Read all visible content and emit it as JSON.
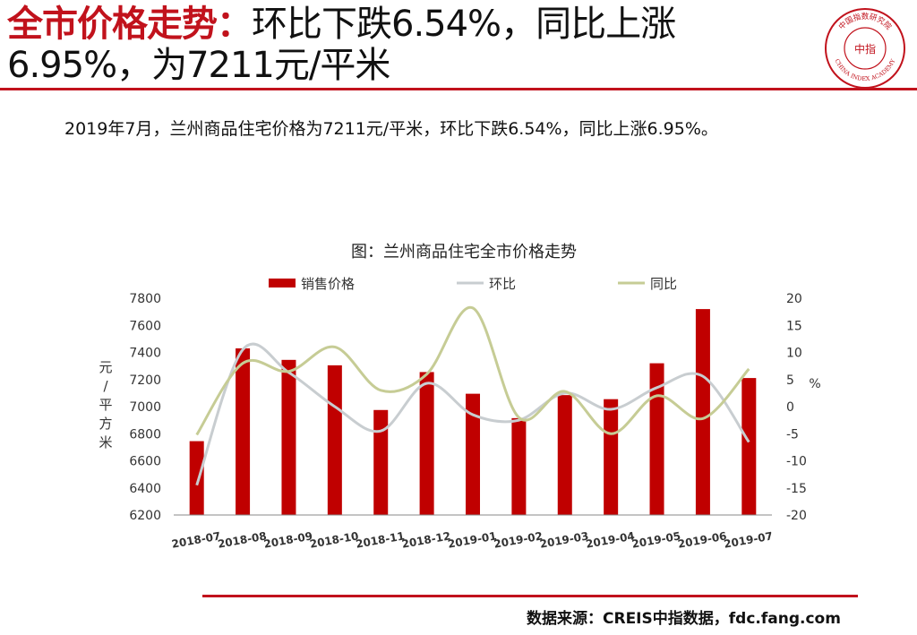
{
  "headline": {
    "highlight": "全市价格走势：",
    "rest": "环比下跌6.54%，同比上涨6.95%，为7211元/平米"
  },
  "logo": {
    "top_text": "中国指数研究院",
    "center_text": "中指",
    "bottom_text": "CHINA INDEX ACADEMY"
  },
  "summary": "2019年7月，兰州商品住宅价格为7211元/平米，环比下跌6.54%，同比上涨6.95%。",
  "source": "数据来源：CREIS中指数据，fdc.fang.com",
  "colors": {
    "accent_red": "#c1121c",
    "bar": "#c00000",
    "mom_line": "#c8cdd0",
    "yoy_line": "#c6cc95"
  },
  "chart_data": {
    "type": "bar",
    "title": "图：兰州商品住宅全市价格走势",
    "categories": [
      "2018-07",
      "2018-08",
      "2018-09",
      "2018-10",
      "2018-11",
      "2018-12",
      "2019-01",
      "2019-02",
      "2019-03",
      "2019-04",
      "2019-05",
      "2019-06",
      "2019-07"
    ],
    "series": [
      {
        "name": "销售价格",
        "kind": "bar",
        "axis": "left",
        "values": [
          6745,
          7430,
          7345,
          7305,
          6975,
          7255,
          7095,
          6915,
          7085,
          7055,
          7320,
          7720,
          7211
        ]
      },
      {
        "name": "环比",
        "kind": "line",
        "axis": "right",
        "values": [
          -14.5,
          10.5,
          6.3,
          0.0,
          -4.5,
          4.3,
          -1.5,
          -2.5,
          2.5,
          -0.5,
          3.5,
          5.6,
          -6.54
        ]
      },
      {
        "name": "同比",
        "kind": "line",
        "axis": "right",
        "values": [
          -5.2,
          8.0,
          6.5,
          11.0,
          3.0,
          6.0,
          18.2,
          -2.0,
          2.8,
          -5.0,
          2.0,
          -2.2,
          6.95
        ]
      }
    ],
    "ylabel": "元/平方米",
    "ylim": [
      6200,
      7800
    ],
    "yticks": [
      6200,
      6400,
      6600,
      6800,
      7000,
      7200,
      7400,
      7600,
      7800
    ],
    "y2label": "%",
    "y2lim": [
      -20,
      20
    ],
    "y2ticks": [
      -20,
      -15,
      -10,
      -5,
      0,
      5,
      10,
      15,
      20
    ],
    "legend": "top",
    "grid": false
  }
}
